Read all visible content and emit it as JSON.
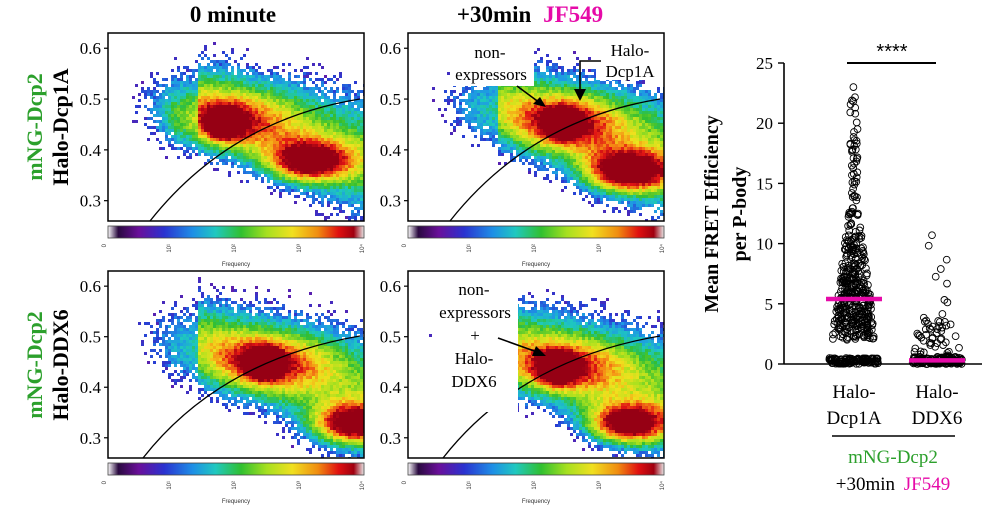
{
  "figure": {
    "col_titles": [
      "0 minute",
      "+30min",
      "JF549"
    ],
    "row1_label": [
      "mNG-Dcp2",
      "Halo-Dcp1A"
    ],
    "row2_label": [
      "mNG-Dcp2",
      "Halo-DDX6"
    ],
    "colorbar_label": "Frequency",
    "colorbar_ticks": [
      "0",
      "10¹",
      "10²",
      "10³",
      "10⁴"
    ],
    "annotations": {
      "top_nonexpressors": [
        "non-",
        "expressors"
      ],
      "top_halo": [
        "Halo-",
        "Dcp1A"
      ],
      "bottom_combined": [
        "non-",
        "expressors",
        "+",
        "Halo-",
        "DDX6"
      ]
    },
    "significance": "****",
    "xgroup_label_line1": "mNG-Dcp2",
    "xgroup_label_line2a": "+30min",
    "xgroup_label_line2b": "JF549",
    "colors": {
      "green": "#2ca02c",
      "magenta": "#e60aa8",
      "black": "#000000"
    }
  },
  "chart_data": [
    {
      "type": "heatmap",
      "panel": "row1-0min",
      "ylim": [
        0.26,
        0.63
      ],
      "yticks": [
        0.3,
        0.4,
        0.5,
        0.6
      ],
      "scale": "log",
      "hotspots": [
        {
          "x": 0.45,
          "y": 0.455,
          "intensity": 1.0
        },
        {
          "x": 0.78,
          "y": 0.38,
          "intensity": 0.85
        }
      ]
    },
    {
      "type": "heatmap",
      "panel": "row1-30min",
      "ylim": [
        0.26,
        0.63
      ],
      "yticks": [
        0.3,
        0.4,
        0.5,
        0.6
      ],
      "scale": "log",
      "hotspots": [
        {
          "x": 0.6,
          "y": 0.455,
          "intensity": 1.0
        },
        {
          "x": 0.85,
          "y": 0.36,
          "intensity": 0.95
        }
      ]
    },
    {
      "type": "heatmap",
      "panel": "row2-0min",
      "ylim": [
        0.26,
        0.63
      ],
      "yticks": [
        0.3,
        0.4,
        0.5,
        0.6
      ],
      "scale": "log",
      "hotspots": [
        {
          "x": 0.6,
          "y": 0.45,
          "intensity": 1.0
        },
        {
          "x": 0.95,
          "y": 0.33,
          "intensity": 0.85
        }
      ]
    },
    {
      "type": "heatmap",
      "panel": "row2-30min",
      "ylim": [
        0.26,
        0.63
      ],
      "yticks": [
        0.3,
        0.4,
        0.5,
        0.6
      ],
      "scale": "log",
      "hotspots": [
        {
          "x": 0.58,
          "y": 0.44,
          "intensity": 1.0
        },
        {
          "x": 0.85,
          "y": 0.33,
          "intensity": 0.95
        }
      ]
    },
    {
      "type": "scatter",
      "panel": "dotplot",
      "ylabel": [
        "Mean FRET Efficiency",
        "per P-body"
      ],
      "ylim": [
        0,
        25
      ],
      "yticks": [
        0,
        5,
        10,
        15,
        20,
        25
      ],
      "categories": [
        [
          "Halo-",
          "Dcp1A"
        ],
        [
          "Halo-",
          "DDX6"
        ]
      ],
      "means": [
        5.4,
        0.3
      ],
      "ranges": [
        [
          0,
          23
        ],
        [
          0,
          10.7
        ]
      ]
    }
  ]
}
